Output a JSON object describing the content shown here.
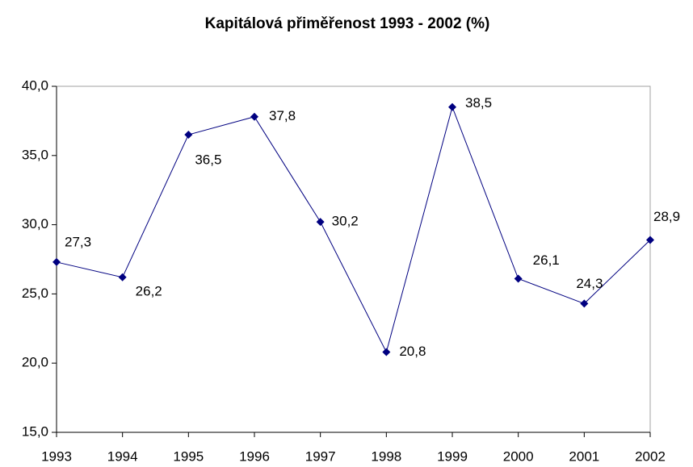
{
  "chart_data": {
    "type": "line",
    "title": "Kapitálová přiměřenost 1993 - 2002 (%)",
    "categories": [
      "1993",
      "1994",
      "1995",
      "1996",
      "1997",
      "1998",
      "1999",
      "2000",
      "2001",
      "2002"
    ],
    "series": [
      {
        "name": "Kapitálová přiměřenost",
        "color": "#000080",
        "values": [
          27.3,
          26.2,
          36.5,
          37.8,
          30.2,
          20.8,
          38.5,
          26.1,
          24.3,
          28.9
        ],
        "value_labels": [
          "27,3",
          "26,2",
          "36,5",
          "37,8",
          "30,2",
          "20,8",
          "38,5",
          "26,1",
          "24,3",
          "28,9"
        ]
      }
    ],
    "ylim": [
      15,
      40
    ],
    "yticks": [
      {
        "value": 15,
        "label": "15,0"
      },
      {
        "value": 20,
        "label": "20,0"
      },
      {
        "value": 25,
        "label": "25,0"
      },
      {
        "value": 30,
        "label": "30,0"
      },
      {
        "value": 35,
        "label": "35,0"
      },
      {
        "value": 40,
        "label": "40,0"
      }
    ],
    "grid": false
  }
}
